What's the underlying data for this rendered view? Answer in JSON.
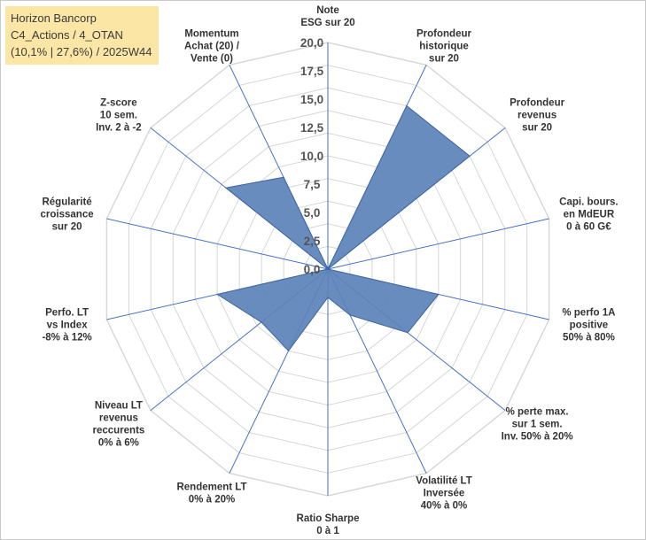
{
  "title": {
    "line1": "Horizon Bancorp",
    "line2": "C4_Actions / 4_OTAN",
    "line3": "(10,1% | 27,6%) / 2025W44"
  },
  "chart_data": {
    "type": "radar",
    "ylim": [
      0,
      20
    ],
    "tick_labels": [
      "0,0",
      "2,5",
      "5,0",
      "7,5",
      "10,0",
      "12,5",
      "15,0",
      "17,5",
      "20,0"
    ],
    "grid_levels": 10,
    "axes": [
      [
        "Note",
        "ESG sur 20"
      ],
      [
        "Profondeur",
        "historique",
        "sur 20"
      ],
      [
        "Profondeur",
        "revenus",
        "sur 20"
      ],
      [
        "Capi. bours.",
        "en MdEUR",
        "0 à 60 G€"
      ],
      [
        "% perfo 1A",
        "positive",
        "50% à 80%"
      ],
      [
        "% perte max.",
        "sur 1 sem.",
        "Inv. 50% à 20%"
      ],
      [
        "Volatilité LT",
        "Inversée",
        "40% à 0%"
      ],
      [
        "Ratio Sharpe",
        "0 à 1"
      ],
      [
        "Rendement LT",
        "0% à 20%"
      ],
      [
        "Niveau LT",
        "revenus",
        "reccurents",
        "0% à 6%"
      ],
      [
        "Perfo. LT",
        "vs Index",
        "-8% à 12%"
      ],
      [
        "Régularité",
        "croissance",
        "sur 20"
      ],
      [
        "Z-score",
        "10 sem.",
        "Inv. 2 à -2"
      ],
      [
        "Momentum",
        "Achat (20) /",
        "Vente (0)"
      ]
    ],
    "series": [
      {
        "name": "Horizon Bancorp",
        "values": [
          0,
          16.0,
          16.0,
          0,
          10.0,
          9.0,
          4.5,
          2.5,
          8.0,
          7.5,
          10.0,
          0,
          11.5,
          9.0
        ]
      }
    ],
    "colors": {
      "fill": "#5b82b8",
      "stroke": "#3f66a0",
      "grid": "#d6d6d6",
      "axis": "#4472c4"
    }
  }
}
